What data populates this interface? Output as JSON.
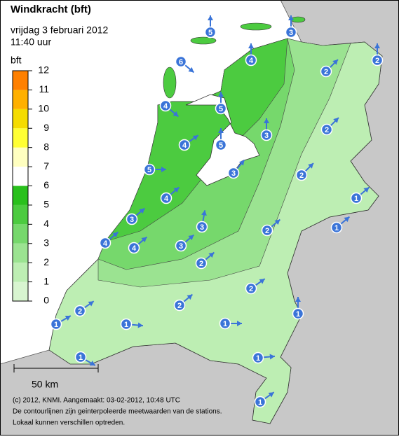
{
  "header": {
    "title": "Windkracht (bft)",
    "date": "vrijdag 3 februari 2012",
    "time": "11:40 uur"
  },
  "legend": {
    "unit": "bft",
    "ticks": [
      0,
      1,
      2,
      3,
      4,
      5,
      6,
      7,
      8,
      9,
      10,
      11,
      12
    ],
    "colors": [
      "#d8f5d0",
      "#bdeeb3",
      "#9be391",
      "#76d86c",
      "#4ccb40",
      "#29c01c",
      "#ffffff",
      "#ffffc0",
      "#ffff33",
      "#f5dc00",
      "#ffb000",
      "#ff8000"
    ]
  },
  "scale": "50 km",
  "footer": [
    "(c) 2012, KNMI. Aangemaakt: 03-02-2012, 10:48 UTC",
    "De contourlijnen zijn geinterpoleerde meetwaarden van de stations.",
    "Lokaal kunnen verschillen optreden."
  ],
  "stations": [
    "5",
    "3",
    "2",
    "6",
    "4",
    "2",
    "4",
    "5",
    "2",
    "3",
    "4",
    "5",
    "5",
    "3",
    "2",
    "1",
    "4",
    "3",
    "3",
    "2",
    "1",
    "4",
    "4",
    "3",
    "2",
    "2",
    "2",
    "2",
    "1",
    "1",
    "1",
    "1",
    "1",
    "1",
    "1"
  ]
}
